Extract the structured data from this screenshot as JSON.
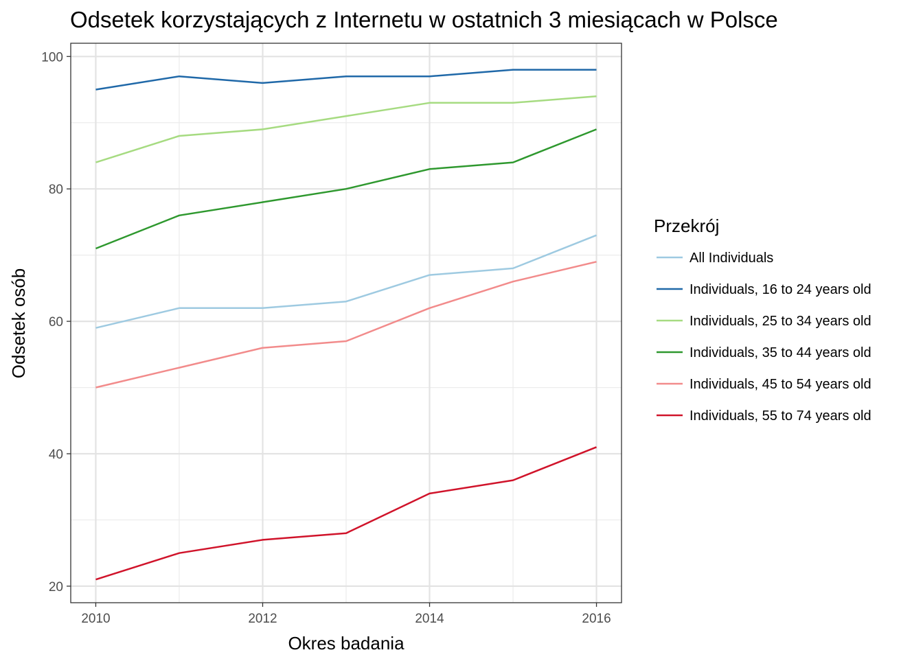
{
  "chart_data": {
    "type": "line",
    "title": "Odsetek korzystających z Internetu w ostatnich 3 miesiącach w Polsce",
    "xlabel": "Okres badania",
    "ylabel": "Odsetek osób",
    "x": [
      2010,
      2011,
      2012,
      2013,
      2014,
      2015,
      2016
    ],
    "xticks": [
      2010,
      2012,
      2014,
      2016
    ],
    "yticks": [
      20,
      40,
      60,
      80,
      100
    ],
    "xlim": [
      2009.7,
      2016.3
    ],
    "ylim": [
      17.5,
      102
    ],
    "grid": true,
    "legend": {
      "title": "Przekrój",
      "position": "right"
    },
    "series": [
      {
        "name": "All Individuals",
        "color": "#9ecae1",
        "values": [
          59,
          62,
          62,
          63,
          67,
          68,
          73
        ]
      },
      {
        "name": "Individuals, 16 to 24 years old",
        "color": "#1f68a8",
        "values": [
          95,
          97,
          96,
          97,
          97,
          98,
          98
        ]
      },
      {
        "name": "Individuals, 25 to 34 years old",
        "color": "#a6db81",
        "values": [
          84,
          88,
          89,
          91,
          93,
          93,
          94
        ]
      },
      {
        "name": "Individuals, 35 to 44 years old",
        "color": "#2e982e",
        "values": [
          71,
          76,
          78,
          80,
          83,
          84,
          89
        ]
      },
      {
        "name": "Individuals, 45 to 54 years old",
        "color": "#f28b8b",
        "values": [
          50,
          53,
          56,
          57,
          62,
          66,
          69
        ]
      },
      {
        "name": "Individuals, 55 to 74 years old",
        "color": "#d0132a",
        "values": [
          21,
          25,
          27,
          28,
          34,
          36,
          41
        ]
      }
    ]
  }
}
